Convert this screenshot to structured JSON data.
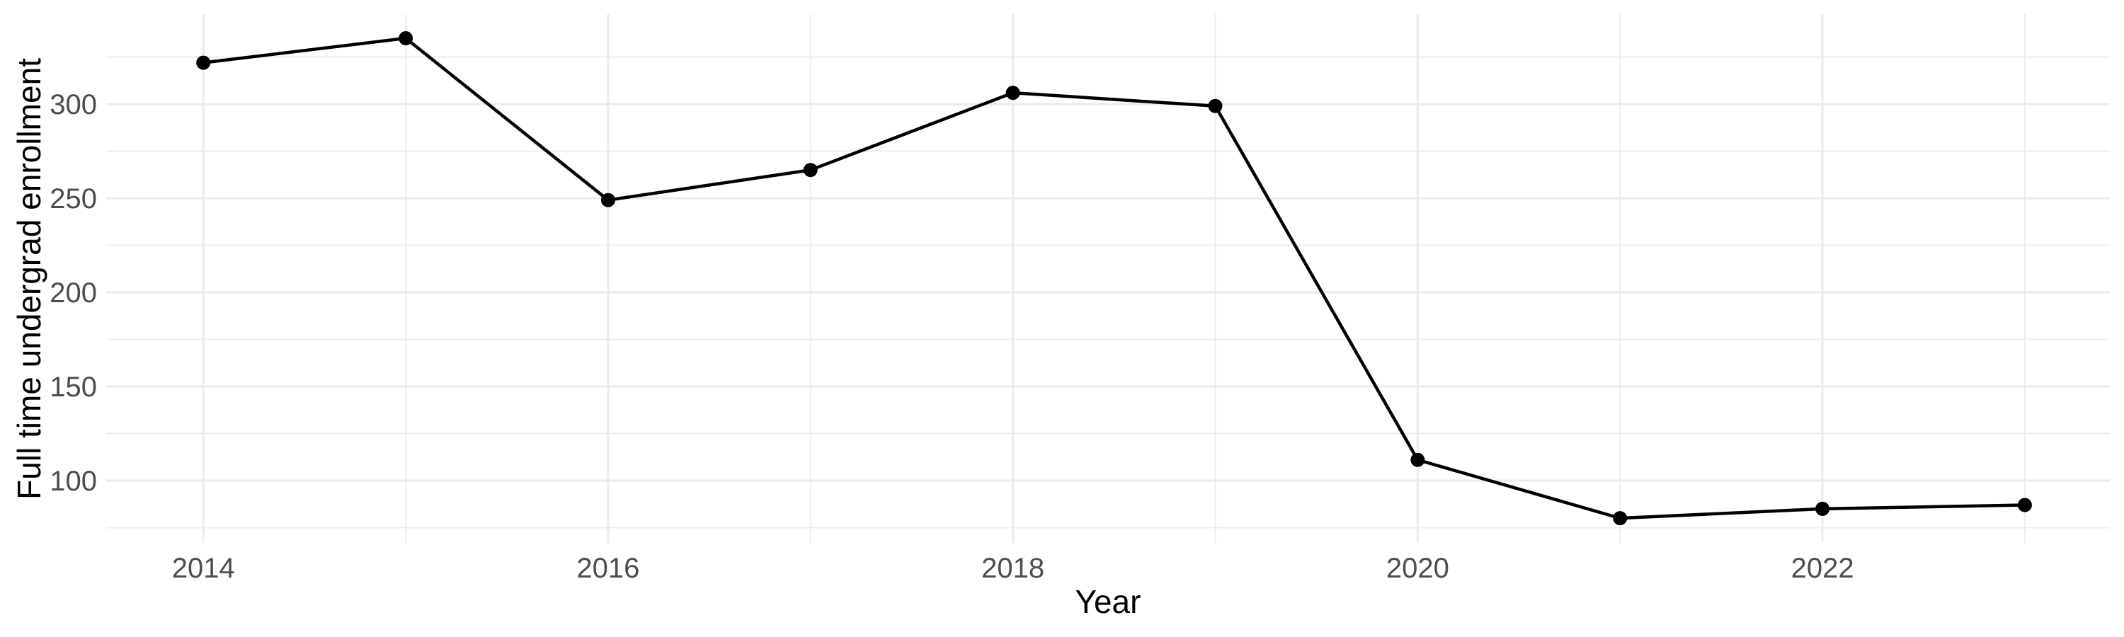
{
  "chart_data": {
    "type": "line",
    "title": "",
    "xlabel": "Year",
    "ylabel": "Full time undergrad enrollment",
    "x": [
      2014,
      2015,
      2016,
      2017,
      2018,
      2019,
      2020,
      2021,
      2022,
      2023
    ],
    "values": [
      322,
      335,
      249,
      265,
      306,
      299,
      111,
      80,
      85,
      87
    ],
    "series_name": "Full time undergrad enrollment",
    "xlim": [
      2013.52,
      2023.42
    ],
    "ylim": [
      66.9,
      347.8
    ],
    "x_ticks": {
      "values": [
        2014,
        2016,
        2018,
        2020,
        2022
      ],
      "labels": [
        "2014",
        "2016",
        "2018",
        "2020",
        "2022"
      ]
    },
    "x_minor_gridlines": [
      2015,
      2017,
      2019,
      2021,
      2023
    ],
    "y_ticks": {
      "values": [
        100,
        150,
        200,
        250,
        300
      ],
      "labels": [
        "100",
        "150",
        "200",
        "250",
        "300"
      ]
    },
    "y_minor_gridlines": [
      75,
      125,
      175,
      225,
      275,
      325
    ],
    "grid": "on",
    "legend": "none",
    "colors": {
      "line": "#000000",
      "point": "#000000",
      "grid_major": "#ebebeb",
      "grid_minor": "#ededed",
      "tick_label": "#4d4d4d",
      "axis_title": "#000000",
      "background": "#ffffff"
    }
  }
}
